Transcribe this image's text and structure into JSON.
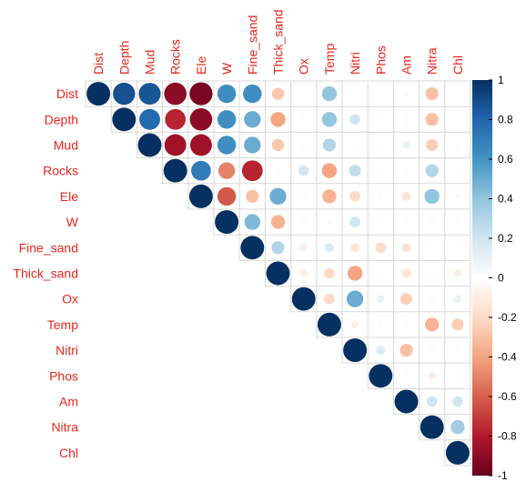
{
  "chart_data": {
    "type": "heatmap",
    "subtype": "correlation-upper-triangle-circles",
    "title": "",
    "variables": [
      "Dist",
      "Depth",
      "Mud",
      "Rocks",
      "Ele",
      "W",
      "Fine_sand",
      "Thick_sand",
      "Ox",
      "Temp",
      "Nitri",
      "Phos",
      "Am",
      "Nitra",
      "Chl"
    ],
    "matrix": [
      [
        1.0,
        0.88,
        0.86,
        -0.9,
        -0.95,
        0.62,
        0.62,
        -0.27,
        0.02,
        0.4,
        -0.02,
        0.02,
        0.04,
        -0.3,
        0.02
      ],
      [
        0.88,
        1.0,
        0.78,
        -0.77,
        -0.9,
        0.62,
        0.5,
        -0.4,
        0.03,
        0.4,
        0.2,
        0.03,
        0.04,
        -0.3,
        0.02
      ],
      [
        0.86,
        0.78,
        1.0,
        -0.85,
        -0.85,
        0.62,
        0.5,
        -0.27,
        0.03,
        0.3,
        0.03,
        0.03,
        0.1,
        -0.25,
        0.03
      ],
      [
        -0.9,
        -0.77,
        -0.85,
        1.0,
        0.7,
        -0.5,
        -0.77,
        0.03,
        0.2,
        -0.4,
        0.25,
        0.03,
        0.03,
        0.3,
        0.03
      ],
      [
        -0.95,
        -0.9,
        -0.85,
        0.7,
        1.0,
        -0.62,
        -0.3,
        0.5,
        0.03,
        -0.35,
        -0.2,
        0.03,
        -0.15,
        0.4,
        -0.04
      ],
      [
        0.62,
        0.62,
        0.62,
        -0.5,
        -0.62,
        1.0,
        0.45,
        -0.35,
        0.03,
        0.04,
        0.2,
        0.03,
        0.03,
        0.03,
        0.03
      ],
      [
        0.62,
        0.5,
        0.5,
        -0.77,
        -0.3,
        0.45,
        1.0,
        0.3,
        -0.1,
        0.15,
        -0.15,
        -0.2,
        -0.15,
        0.03,
        -0.03
      ],
      [
        -0.27,
        -0.4,
        -0.27,
        0.03,
        0.5,
        -0.35,
        0.3,
        1.0,
        -0.1,
        -0.2,
        -0.4,
        0.03,
        -0.15,
        0.03,
        -0.1
      ],
      [
        0.02,
        0.03,
        0.03,
        0.2,
        0.03,
        0.03,
        -0.1,
        -0.1,
        1.0,
        -0.2,
        0.5,
        0.1,
        -0.25,
        -0.03,
        0.1
      ],
      [
        0.4,
        0.4,
        0.3,
        -0.4,
        -0.35,
        0.04,
        0.15,
        -0.2,
        -0.2,
        1.0,
        -0.1,
        0.03,
        0.03,
        -0.35,
        -0.25
      ],
      [
        -0.02,
        0.2,
        0.03,
        0.25,
        -0.2,
        0.2,
        -0.15,
        -0.4,
        0.5,
        -0.1,
        1.0,
        0.15,
        -0.3,
        0.03,
        -0.03
      ],
      [
        0.02,
        0.03,
        0.03,
        0.03,
        0.03,
        0.03,
        -0.2,
        0.03,
        0.1,
        0.03,
        0.15,
        1.0,
        0.03,
        -0.1,
        0.03
      ],
      [
        0.04,
        0.04,
        0.1,
        0.03,
        -0.15,
        0.03,
        -0.15,
        -0.15,
        -0.25,
        0.03,
        -0.3,
        0.03,
        1.0,
        0.2,
        0.2
      ],
      [
        -0.3,
        -0.3,
        -0.25,
        0.3,
        0.4,
        0.03,
        0.03,
        0.03,
        -0.03,
        -0.35,
        0.03,
        -0.1,
        0.2,
        1.0,
        0.35
      ],
      [
        0.02,
        0.02,
        0.03,
        0.03,
        -0.04,
        0.03,
        -0.03,
        -0.1,
        0.1,
        -0.25,
        -0.03,
        0.03,
        0.2,
        0.35,
        1.0
      ]
    ],
    "colorbar": {
      "ticks": [
        1,
        0.8,
        0.6,
        0.4,
        0.2,
        0,
        -0.2,
        -0.4,
        -0.6,
        -0.8,
        -1
      ],
      "tick_labels": [
        "1",
        "0.8",
        "0.6",
        "0.4",
        "0.2",
        "0",
        "-0.2",
        "-0.4",
        "-0.6",
        "-0.8",
        "-1"
      ],
      "range": [
        -1,
        1
      ]
    },
    "colors": {
      "label": "#e8261c",
      "grid": "#d9d9d9",
      "scale": [
        "#67001f",
        "#b2182b",
        "#d6604d",
        "#f4a582",
        "#fddbc7",
        "#ffffff",
        "#d1e5f0",
        "#92c5de",
        "#4393c3",
        "#2166ac",
        "#053061"
      ]
    },
    "legend": "right",
    "grid": true
  }
}
